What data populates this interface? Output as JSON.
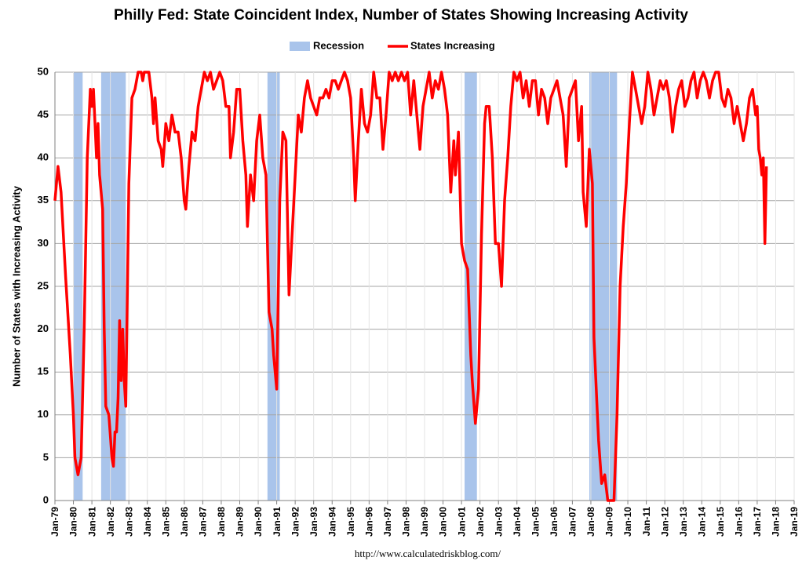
{
  "chart_data": {
    "type": "line",
    "title": "Philly Fed: State Coincident Index, Number of States Showing Increasing Activity",
    "y_label": "Number of States with Increasing Activity",
    "source": "http://www.calculatedriskblog.com/",
    "legend_position": "top",
    "grid": true,
    "recessions": {
      "name": "Recession",
      "color": "#a9c4eb",
      "periods": [
        {
          "start": "1980-01",
          "end": "1980-07"
        },
        {
          "start": "1981-07",
          "end": "1982-11"
        },
        {
          "start": "1990-07",
          "end": "1991-03"
        },
        {
          "start": "2001-03",
          "end": "2001-11"
        },
        {
          "start": "2007-12",
          "end": "2009-06"
        }
      ]
    },
    "x": [
      "1979-01",
      "1979-03",
      "1979-05",
      "1979-08",
      "1979-11",
      "1980-01",
      "1980-02",
      "1980-04",
      "1980-06",
      "1980-08",
      "1980-10",
      "1980-12",
      "1981-01",
      "1981-02",
      "1981-04",
      "1981-05",
      "1981-06",
      "1981-08",
      "1981-09",
      "1981-10",
      "1981-12",
      "1982-02",
      "1982-03",
      "1982-04",
      "1982-05",
      "1982-06",
      "1982-07",
      "1982-08",
      "1982-09",
      "1982-10",
      "1982-11",
      "1983-01",
      "1983-03",
      "1983-05",
      "1983-07",
      "1983-09",
      "1983-10",
      "1983-11",
      "1984-02",
      "1984-04",
      "1984-05",
      "1984-06",
      "1984-08",
      "1984-10",
      "1984-11",
      "1985-01",
      "1985-03",
      "1985-05",
      "1985-07",
      "1985-09",
      "1985-11",
      "1986-01",
      "1986-02",
      "1986-04",
      "1986-06",
      "1986-08",
      "1986-10",
      "1987-01",
      "1987-02",
      "1987-04",
      "1987-06",
      "1987-08",
      "1987-10",
      "1987-12",
      "1988-02",
      "1988-04",
      "1988-06",
      "1988-07",
      "1988-09",
      "1988-11",
      "1989-01",
      "1989-03",
      "1989-05",
      "1989-06",
      "1989-08",
      "1989-10",
      "1989-12",
      "1990-02",
      "1990-04",
      "1990-06",
      "1990-07",
      "1990-08",
      "1990-10",
      "1990-11",
      "1991-01",
      "1991-03",
      "1991-05",
      "1991-07",
      "1991-09",
      "1991-11",
      "1992-01",
      "1992-03",
      "1992-05",
      "1992-07",
      "1992-09",
      "1992-11",
      "1993-01",
      "1993-03",
      "1993-05",
      "1993-07",
      "1993-09",
      "1993-11",
      "1994-01",
      "1994-03",
      "1994-05",
      "1994-07",
      "1994-09",
      "1994-11",
      "1995-01",
      "1995-03",
      "1995-04",
      "1995-06",
      "1995-08",
      "1995-10",
      "1995-12",
      "1996-02",
      "1996-04",
      "1996-06",
      "1996-08",
      "1996-10",
      "1996-12",
      "1997-02",
      "1997-04",
      "1997-06",
      "1997-08",
      "1997-10",
      "1997-12",
      "1998-02",
      "1998-04",
      "1998-06",
      "1998-08",
      "1998-10",
      "1998-12",
      "1999-02",
      "1999-04",
      "1999-06",
      "1999-08",
      "1999-10",
      "1999-12",
      "2000-02",
      "2000-04",
      "2000-06",
      "2000-08",
      "2000-09",
      "2000-11",
      "2001-01",
      "2001-03",
      "2001-05",
      "2001-07",
      "2001-08",
      "2001-10",
      "2001-12",
      "2002-02",
      "2002-04",
      "2002-05",
      "2002-07",
      "2002-09",
      "2002-11",
      "2003-01",
      "2003-03",
      "2003-05",
      "2003-07",
      "2003-09",
      "2003-11",
      "2004-01",
      "2004-03",
      "2004-05",
      "2004-07",
      "2004-09",
      "2004-11",
      "2005-01",
      "2005-03",
      "2005-05",
      "2005-07",
      "2005-09",
      "2005-11",
      "2006-01",
      "2006-03",
      "2006-05",
      "2006-07",
      "2006-09",
      "2006-11",
      "2007-01",
      "2007-03",
      "2007-05",
      "2007-07",
      "2007-08",
      "2007-10",
      "2007-12",
      "2008-02",
      "2008-03",
      "2008-05",
      "2008-06",
      "2008-08",
      "2008-10",
      "2008-12",
      "2009-02",
      "2009-04",
      "2009-06",
      "2009-08",
      "2009-10",
      "2009-12",
      "2010-02",
      "2010-04",
      "2010-06",
      "2010-08",
      "2010-10",
      "2010-12",
      "2011-02",
      "2011-04",
      "2011-06",
      "2011-08",
      "2011-10",
      "2011-12",
      "2012-02",
      "2012-04",
      "2012-06",
      "2012-08",
      "2012-10",
      "2012-12",
      "2013-02",
      "2013-04",
      "2013-06",
      "2013-08",
      "2013-10",
      "2013-12",
      "2014-02",
      "2014-04",
      "2014-06",
      "2014-08",
      "2014-10",
      "2014-12",
      "2015-02",
      "2015-04",
      "2015-06",
      "2015-08",
      "2015-10",
      "2015-12",
      "2016-02",
      "2016-04",
      "2016-06",
      "2016-08",
      "2016-10",
      "2016-12",
      "2017-01",
      "2017-02",
      "2017-03",
      "2017-04",
      "2017-05",
      "2017-06",
      "2017-07"
    ],
    "series": [
      {
        "name": "States Increasing",
        "color": "#ff0000",
        "values": [
          35,
          39,
          36,
          26,
          17,
          10,
          5,
          3,
          5,
          20,
          40,
          48,
          46,
          48,
          40,
          44,
          38,
          34,
          20,
          11,
          10,
          5,
          4,
          8,
          8,
          12,
          21,
          14,
          20,
          14,
          11,
          37,
          47,
          48,
          50,
          50,
          49,
          50,
          50,
          47,
          44,
          47,
          42,
          41,
          39,
          44,
          42,
          45,
          43,
          43,
          40,
          35,
          34,
          39,
          43,
          42,
          46,
          49,
          50,
          49,
          50,
          48,
          49,
          50,
          49,
          46,
          46,
          40,
          43,
          48,
          48,
          42,
          38,
          32,
          38,
          35,
          42,
          45,
          40,
          38,
          30,
          22,
          20,
          17,
          13,
          35,
          43,
          42,
          24,
          31,
          38,
          45,
          43,
          47,
          49,
          47,
          46,
          45,
          47,
          47,
          48,
          47,
          49,
          49,
          48,
          49,
          50,
          49,
          47,
          40,
          35,
          42,
          48,
          44,
          43,
          45,
          50,
          47,
          47,
          41,
          45,
          50,
          49,
          50,
          49,
          50,
          49,
          50,
          45,
          49,
          45,
          41,
          46,
          48,
          50,
          47,
          49,
          48,
          50,
          48,
          45,
          36,
          42,
          38,
          43,
          30,
          28,
          27,
          17,
          14,
          9,
          13,
          31,
          44,
          46,
          46,
          40,
          30,
          30,
          25,
          35,
          40,
          46,
          50,
          49,
          50,
          47,
          49,
          46,
          49,
          49,
          45,
          48,
          47,
          44,
          47,
          48,
          49,
          47,
          45,
          39,
          47,
          48,
          49,
          42,
          46,
          36,
          32,
          41,
          37,
          19,
          11,
          7,
          2,
          3,
          0,
          0,
          0,
          10,
          25,
          32,
          37,
          44,
          50,
          48,
          46,
          44,
          46,
          50,
          48,
          45,
          47,
          49,
          48,
          49,
          47,
          43,
          46,
          48,
          49,
          46,
          47,
          49,
          50,
          47,
          49,
          50,
          49,
          47,
          49,
          50,
          50,
          47,
          46,
          48,
          47,
          44,
          46,
          44,
          42,
          44,
          47,
          48,
          45,
          46,
          41,
          40,
          38,
          40,
          30,
          39
        ]
      }
    ],
    "xlim": [
      "1979-01",
      "2019-01"
    ],
    "xticks": [
      {
        "value": "1979-01",
        "label": "Jan-79"
      },
      {
        "value": "1980-01",
        "label": "Jan-80"
      },
      {
        "value": "1981-01",
        "label": "Jan-81"
      },
      {
        "value": "1982-01",
        "label": "Jan-82"
      },
      {
        "value": "1983-01",
        "label": "Jan-83"
      },
      {
        "value": "1984-01",
        "label": "Jan-84"
      },
      {
        "value": "1985-01",
        "label": "Jan-85"
      },
      {
        "value": "1986-01",
        "label": "Jan-86"
      },
      {
        "value": "1987-01",
        "label": "Jan-87"
      },
      {
        "value": "1988-01",
        "label": "Jan-88"
      },
      {
        "value": "1989-01",
        "label": "Jan-89"
      },
      {
        "value": "1990-01",
        "label": "Jan-90"
      },
      {
        "value": "1991-01",
        "label": "Jan-91"
      },
      {
        "value": "1992-01",
        "label": "Jan-92"
      },
      {
        "value": "1993-01",
        "label": "Jan-93"
      },
      {
        "value": "1994-01",
        "label": "Jan-94"
      },
      {
        "value": "1995-01",
        "label": "Jan-95"
      },
      {
        "value": "1996-01",
        "label": "Jan-96"
      },
      {
        "value": "1997-01",
        "label": "Jan-97"
      },
      {
        "value": "1998-01",
        "label": "Jan-98"
      },
      {
        "value": "1999-01",
        "label": "Jan-99"
      },
      {
        "value": "2000-01",
        "label": "Jan-00"
      },
      {
        "value": "2001-01",
        "label": "Jan-01"
      },
      {
        "value": "2002-01",
        "label": "Jan-02"
      },
      {
        "value": "2003-01",
        "label": "Jan-03"
      },
      {
        "value": "2004-01",
        "label": "Jan-04"
      },
      {
        "value": "2005-01",
        "label": "Jan-05"
      },
      {
        "value": "2006-01",
        "label": "Jan-06"
      },
      {
        "value": "2007-01",
        "label": "Jan-07"
      },
      {
        "value": "2008-01",
        "label": "Jan-08"
      },
      {
        "value": "2009-01",
        "label": "Jan-09"
      },
      {
        "value": "2010-01",
        "label": "Jan-10"
      },
      {
        "value": "2011-01",
        "label": "Jan-11"
      },
      {
        "value": "2012-01",
        "label": "Jan-12"
      },
      {
        "value": "2013-01",
        "label": "Jan-13"
      },
      {
        "value": "2014-01",
        "label": "Jan-14"
      },
      {
        "value": "2015-01",
        "label": "Jan-15"
      },
      {
        "value": "2016-01",
        "label": "Jan-16"
      },
      {
        "value": "2017-01",
        "label": "Jan-17"
      },
      {
        "value": "2018-01",
        "label": "Jan-18"
      },
      {
        "value": "2019-01",
        "label": "Jan-19"
      }
    ],
    "ylim": [
      0,
      50
    ],
    "yticks": [
      0,
      5,
      10,
      15,
      20,
      25,
      30,
      35,
      40,
      45,
      50
    ]
  }
}
